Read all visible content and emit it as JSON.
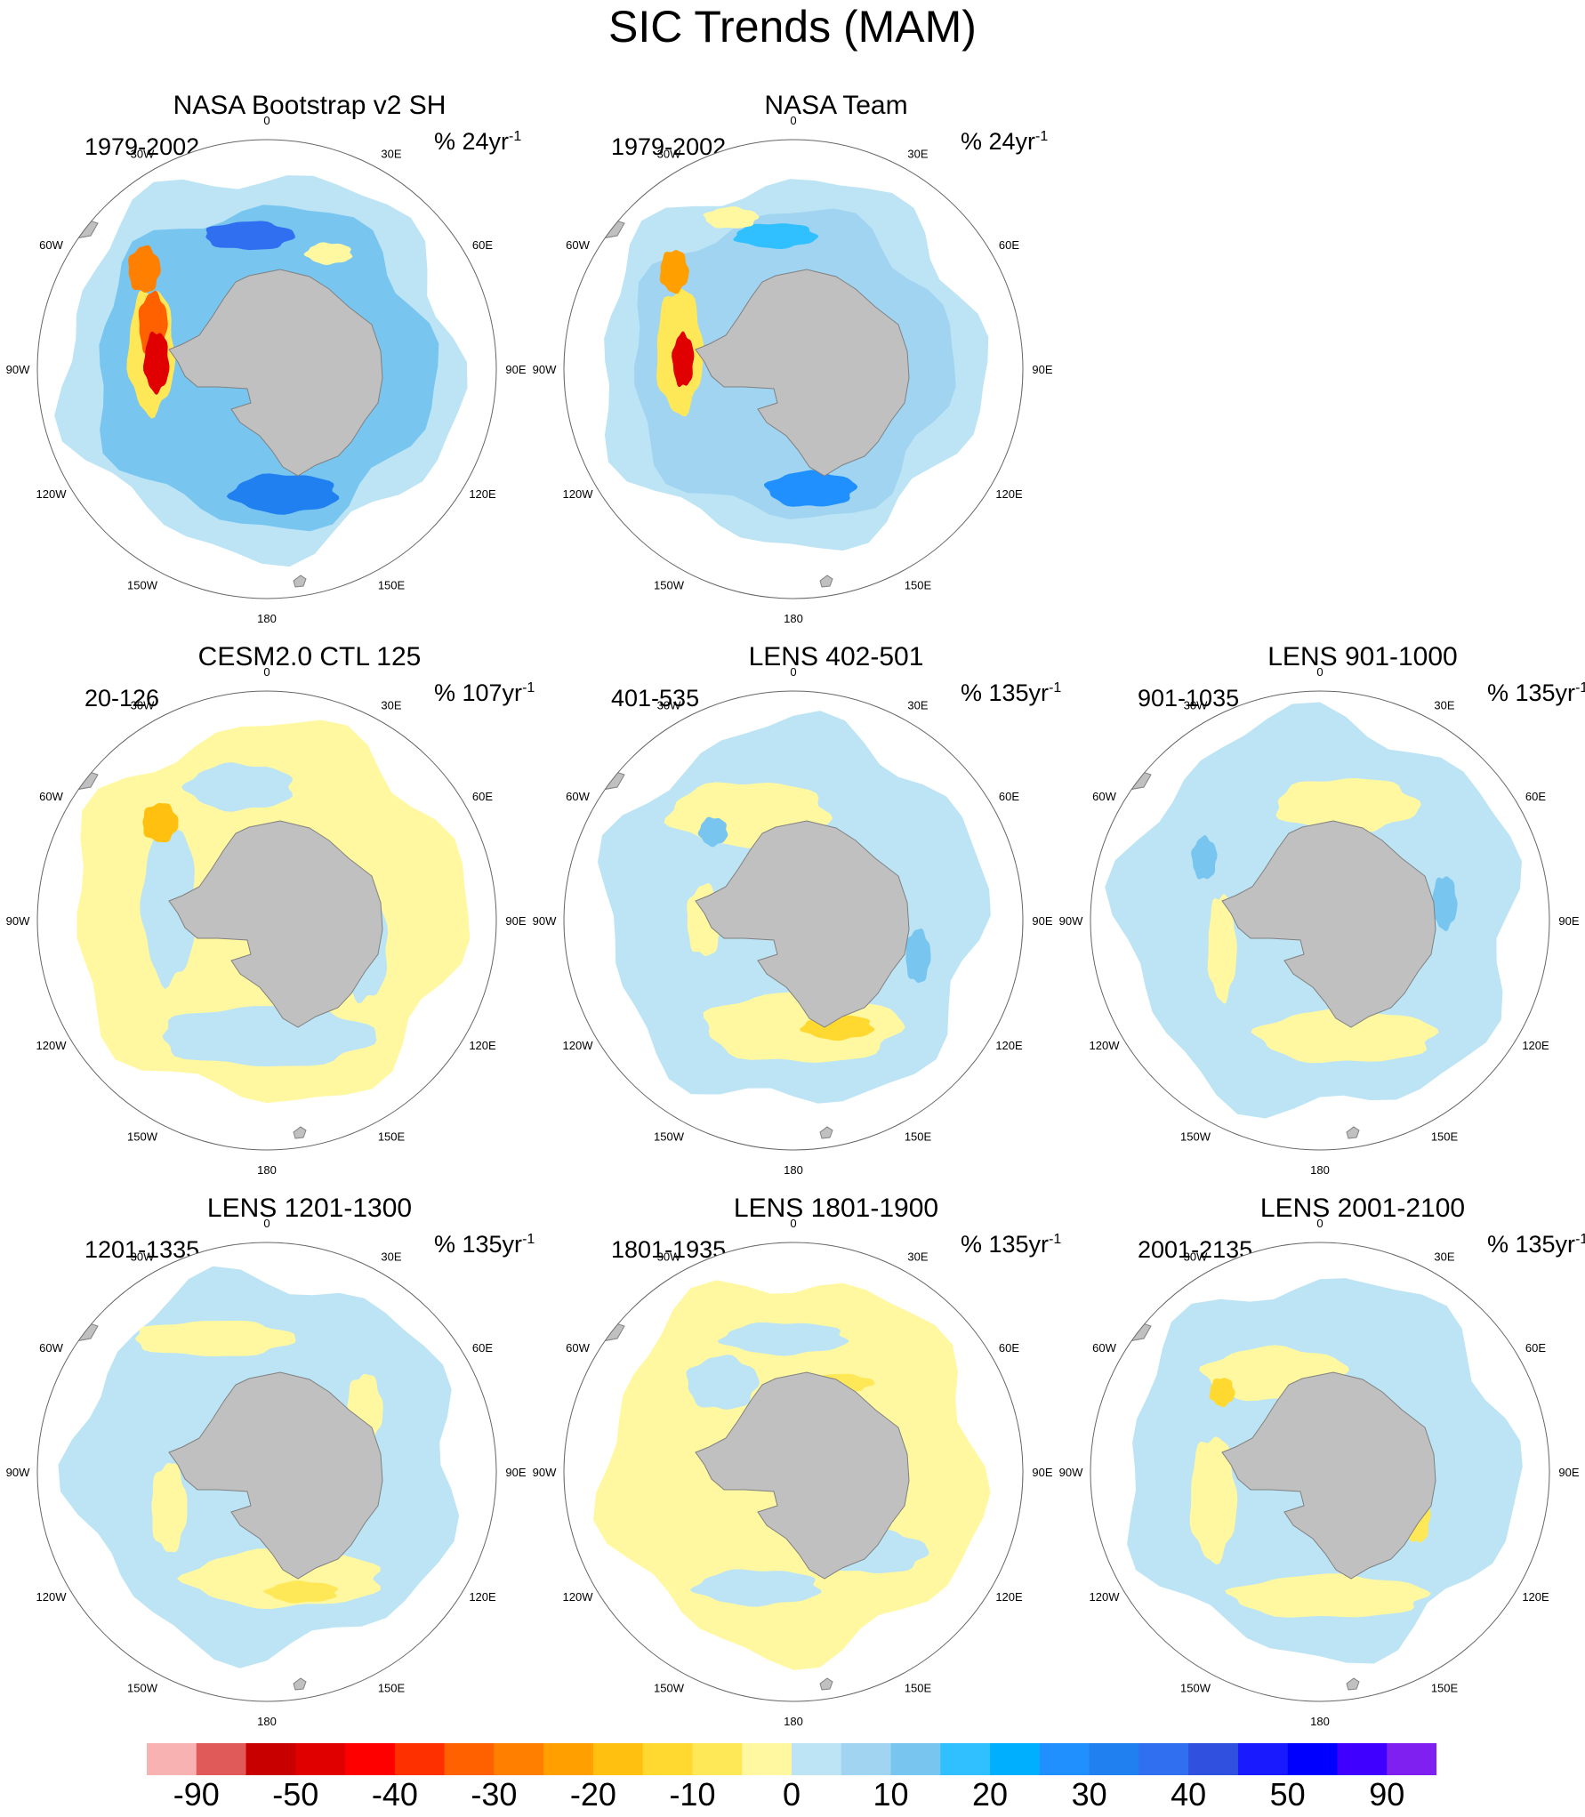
{
  "title": "SIC Trends (MAM)",
  "panels": [
    {
      "title": "NASA Bootstrap v2 SH",
      "years": "1979-2002",
      "units_prefix": "% 24yr",
      "units_exp": "-1",
      "col": 0,
      "row": 0,
      "pattern": "obs1"
    },
    {
      "title": "NASA Team",
      "years": "1979-2002",
      "units_prefix": "% 24yr",
      "units_exp": "-1",
      "col": 1,
      "row": 0,
      "pattern": "obs2"
    },
    {
      "title": "CESM2.0 CTL 125",
      "years": "20-126",
      "units_prefix": "% 107yr",
      "units_exp": "-1",
      "col": 0,
      "row": 1,
      "pattern": "m1"
    },
    {
      "title": "LENS 402-501",
      "years": "401-535",
      "units_prefix": "% 135yr",
      "units_exp": "-1",
      "col": 1,
      "row": 1,
      "pattern": "m2"
    },
    {
      "title": "LENS 901-1000",
      "years": "901-1035",
      "units_prefix": "% 135yr",
      "units_exp": "-1",
      "col": 2,
      "row": 1,
      "pattern": "m3"
    },
    {
      "title": "LENS 1201-1300",
      "years": "1201-1335",
      "units_prefix": "% 135yr",
      "units_exp": "-1",
      "col": 0,
      "row": 2,
      "pattern": "m4"
    },
    {
      "title": "LENS 1801-1900",
      "years": "1801-1935",
      "units_prefix": "% 135yr",
      "units_exp": "-1",
      "col": 1,
      "row": 2,
      "pattern": "m5"
    },
    {
      "title": "LENS 2001-2100",
      "years": "2001-2135",
      "units_prefix": "% 135yr",
      "units_exp": "-1",
      "col": 2,
      "row": 2,
      "pattern": "m6"
    }
  ],
  "longitude_labels": [
    "0",
    "30E",
    "60E",
    "90E",
    "120E",
    "150E",
    "180",
    "150W",
    "120W",
    "90W",
    "60W",
    "30W"
  ],
  "colorbar": {
    "colors": [
      "#f8b2b2",
      "#e05a5a",
      "#c80000",
      "#e00000",
      "#ff0000",
      "#ff3000",
      "#ff6000",
      "#ff8000",
      "#ffa000",
      "#ffc010",
      "#ffd830",
      "#ffe858",
      "#fff8a0",
      "#bce4f4",
      "#a0d4f0",
      "#78c6f0",
      "#30c0ff",
      "#00b0ff",
      "#2090ff",
      "#2080f0",
      "#3070f0",
      "#3050e0",
      "#1a1aff",
      "#0000ff",
      "#4000ff",
      "#8020f0"
    ],
    "labels": [
      "-90",
      "-50",
      "-40",
      "-30",
      "-20",
      "-10",
      "0",
      "10",
      "20",
      "30",
      "40",
      "50",
      "90"
    ]
  },
  "colors": {
    "land": "#c0c0c0",
    "land_edge": "#808080",
    "ocean": "#ffffff",
    "circle": "#666666"
  }
}
